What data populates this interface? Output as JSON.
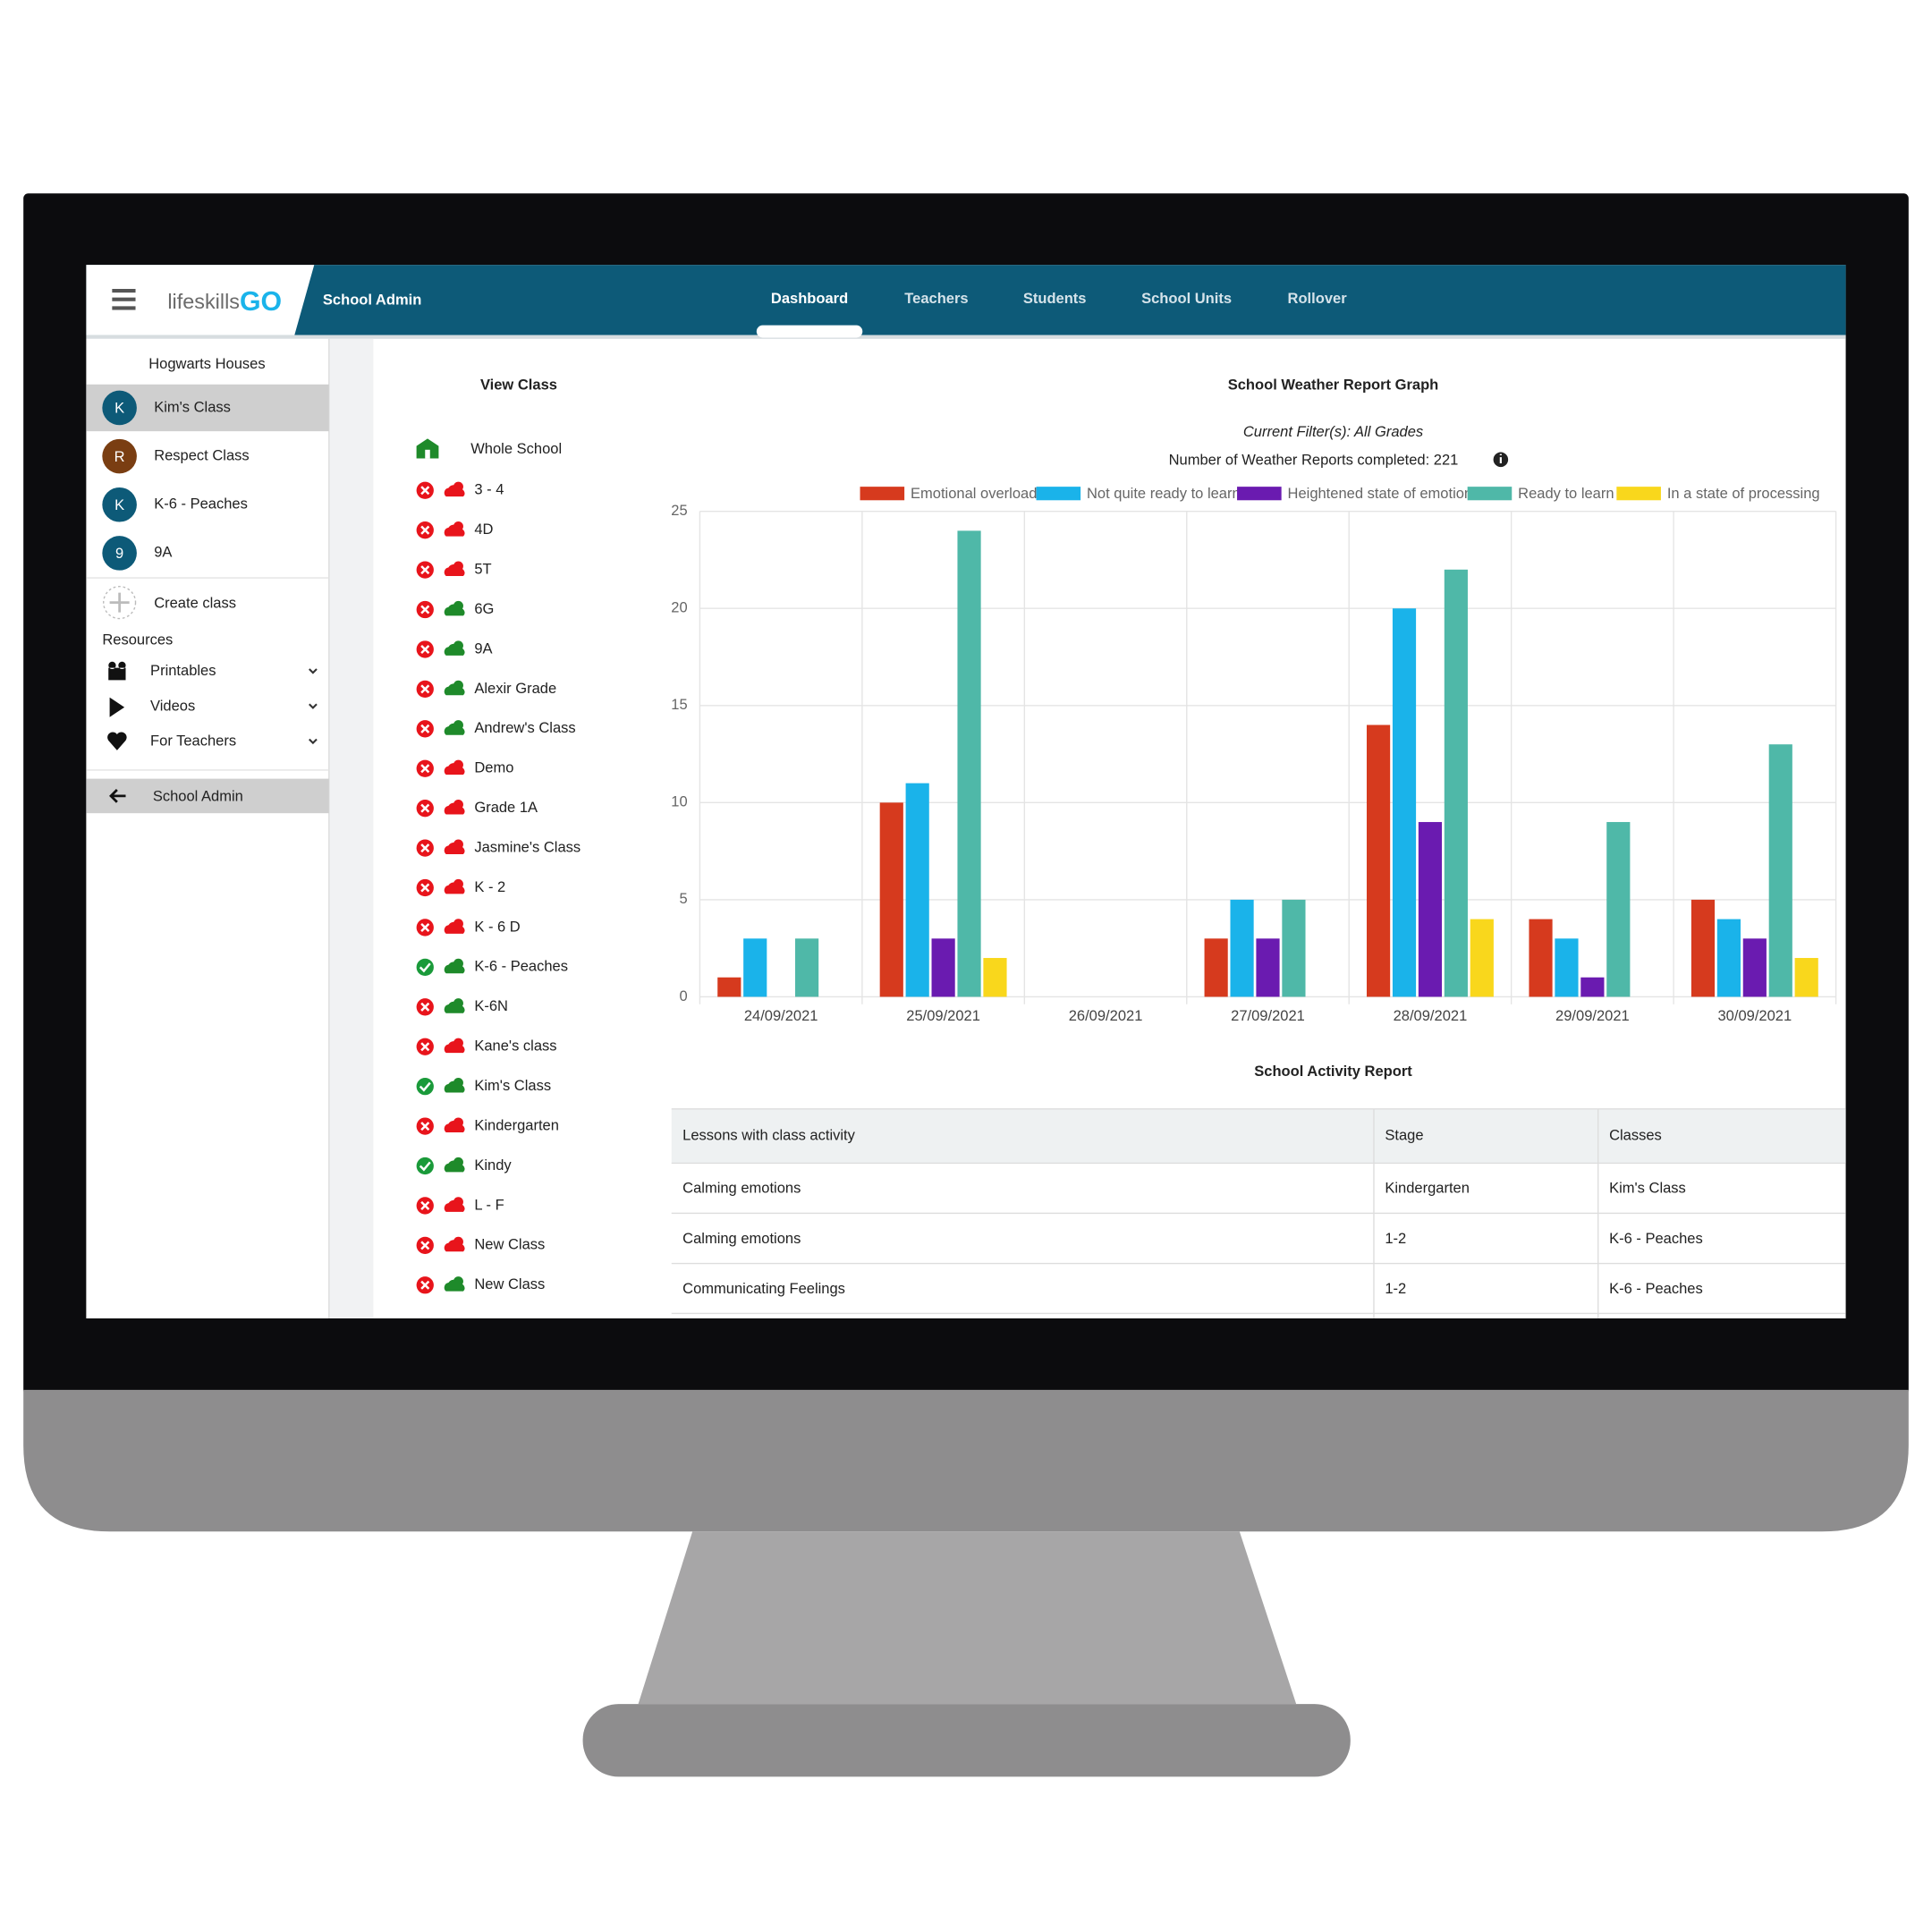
{
  "header": {
    "logo_prefix": "lifeskills",
    "logo_suffix": "GO",
    "title": "School Admin",
    "nav": [
      {
        "label": "Dashboard",
        "active": true
      },
      {
        "label": "Teachers",
        "active": false
      },
      {
        "label": "Students",
        "active": false
      },
      {
        "label": "School Units",
        "active": false
      },
      {
        "label": "Rollover",
        "active": false
      }
    ]
  },
  "sidebar": {
    "group": "Hogwarts Houses",
    "classes": [
      {
        "initial": "K",
        "name": "Kim's Class",
        "color": "#0d5a78",
        "selected": true
      },
      {
        "initial": "R",
        "name": "Respect Class",
        "color": "#7a3e12",
        "selected": false
      },
      {
        "initial": "K",
        "name": "K-6 - Peaches",
        "color": "#0d5a78",
        "selected": false
      },
      {
        "initial": "9",
        "name": "9A",
        "color": "#0d5a78",
        "selected": false
      }
    ],
    "create": "Create class",
    "resources_title": "Resources",
    "resources": [
      "Printables",
      "Videos",
      "For Teachers"
    ],
    "back": "School Admin"
  },
  "view_class": {
    "title": "View Class",
    "whole_school": "Whole School",
    "classes": [
      {
        "name": "3 - 4",
        "done": false,
        "color": "#e8141b"
      },
      {
        "name": "4D",
        "done": false,
        "color": "#e8141b"
      },
      {
        "name": "5T",
        "done": false,
        "color": "#e8141b"
      },
      {
        "name": "6G",
        "done": false,
        "color": "#1e8a2a"
      },
      {
        "name": "9A",
        "done": false,
        "color": "#1e8a2a"
      },
      {
        "name": "Alexir Grade",
        "done": false,
        "color": "#1e8a2a"
      },
      {
        "name": "Andrew's Class",
        "done": false,
        "color": "#1e8a2a"
      },
      {
        "name": "Demo",
        "done": false,
        "color": "#e8141b"
      },
      {
        "name": "Grade 1A",
        "done": false,
        "color": "#e8141b"
      },
      {
        "name": "Jasmine's Class",
        "done": false,
        "color": "#e8141b"
      },
      {
        "name": "K - 2",
        "done": false,
        "color": "#e8141b"
      },
      {
        "name": "K - 6 D",
        "done": false,
        "color": "#e8141b"
      },
      {
        "name": "K-6 - Peaches",
        "done": true,
        "color": "#1e8a2a"
      },
      {
        "name": "K-6N",
        "done": false,
        "color": "#1e8a2a"
      },
      {
        "name": "Kane's class",
        "done": false,
        "color": "#e8141b"
      },
      {
        "name": "Kim's Class",
        "done": true,
        "color": "#1e8a2a"
      },
      {
        "name": "Kindergarten",
        "done": false,
        "color": "#e8141b"
      },
      {
        "name": "Kindy",
        "done": true,
        "color": "#1e8a2a"
      },
      {
        "name": "L - F",
        "done": false,
        "color": "#e8141b"
      },
      {
        "name": "New Class",
        "done": false,
        "color": "#e8141b"
      },
      {
        "name": "New Class",
        "done": false,
        "color": "#1e8a2a"
      }
    ]
  },
  "chart_data": {
    "type": "bar",
    "title": "School Weather Report Graph",
    "subtitle": "Current Filter(s): All Grades",
    "summary": "Number of Weather Reports completed: 221",
    "categories": [
      "24/09/2021",
      "25/09/2021",
      "26/09/2021",
      "27/09/2021",
      "28/09/2021",
      "29/09/2021",
      "30/09/2021"
    ],
    "series": [
      {
        "name": "Emotional overload",
        "color": "#d63a1e",
        "values": [
          1,
          10,
          0,
          3,
          14,
          4,
          5
        ]
      },
      {
        "name": "Not quite ready to learn",
        "color": "#1ab3ea",
        "values": [
          3,
          11,
          0,
          5,
          20,
          3,
          4
        ]
      },
      {
        "name": "Heightened state of emotion",
        "color": "#6a1bb0",
        "values": [
          0,
          3,
          0,
          3,
          9,
          1,
          3
        ]
      },
      {
        "name": "Ready to learn",
        "color": "#4fb8a8",
        "values": [
          3,
          24,
          0,
          5,
          22,
          9,
          13
        ]
      },
      {
        "name": "In a state of processing",
        "color": "#f9d71c",
        "values": [
          0,
          2,
          0,
          0,
          4,
          0,
          2
        ]
      }
    ],
    "ylim": [
      0,
      25
    ],
    "yticks": [
      0,
      5,
      10,
      15,
      20,
      25
    ],
    "grid": true,
    "legend": "top"
  },
  "activity_report": {
    "title": "School Activity Report",
    "columns": [
      "Lessons with class activity",
      "Stage",
      "Classes"
    ],
    "rows": [
      [
        "Calming emotions",
        "Kindergarten",
        "Kim's Class"
      ],
      [
        "Calming emotions",
        "1-2",
        "K-6 - Peaches"
      ],
      [
        "Communicating Feelings",
        "1-2",
        "K-6 - Peaches"
      ]
    ]
  }
}
